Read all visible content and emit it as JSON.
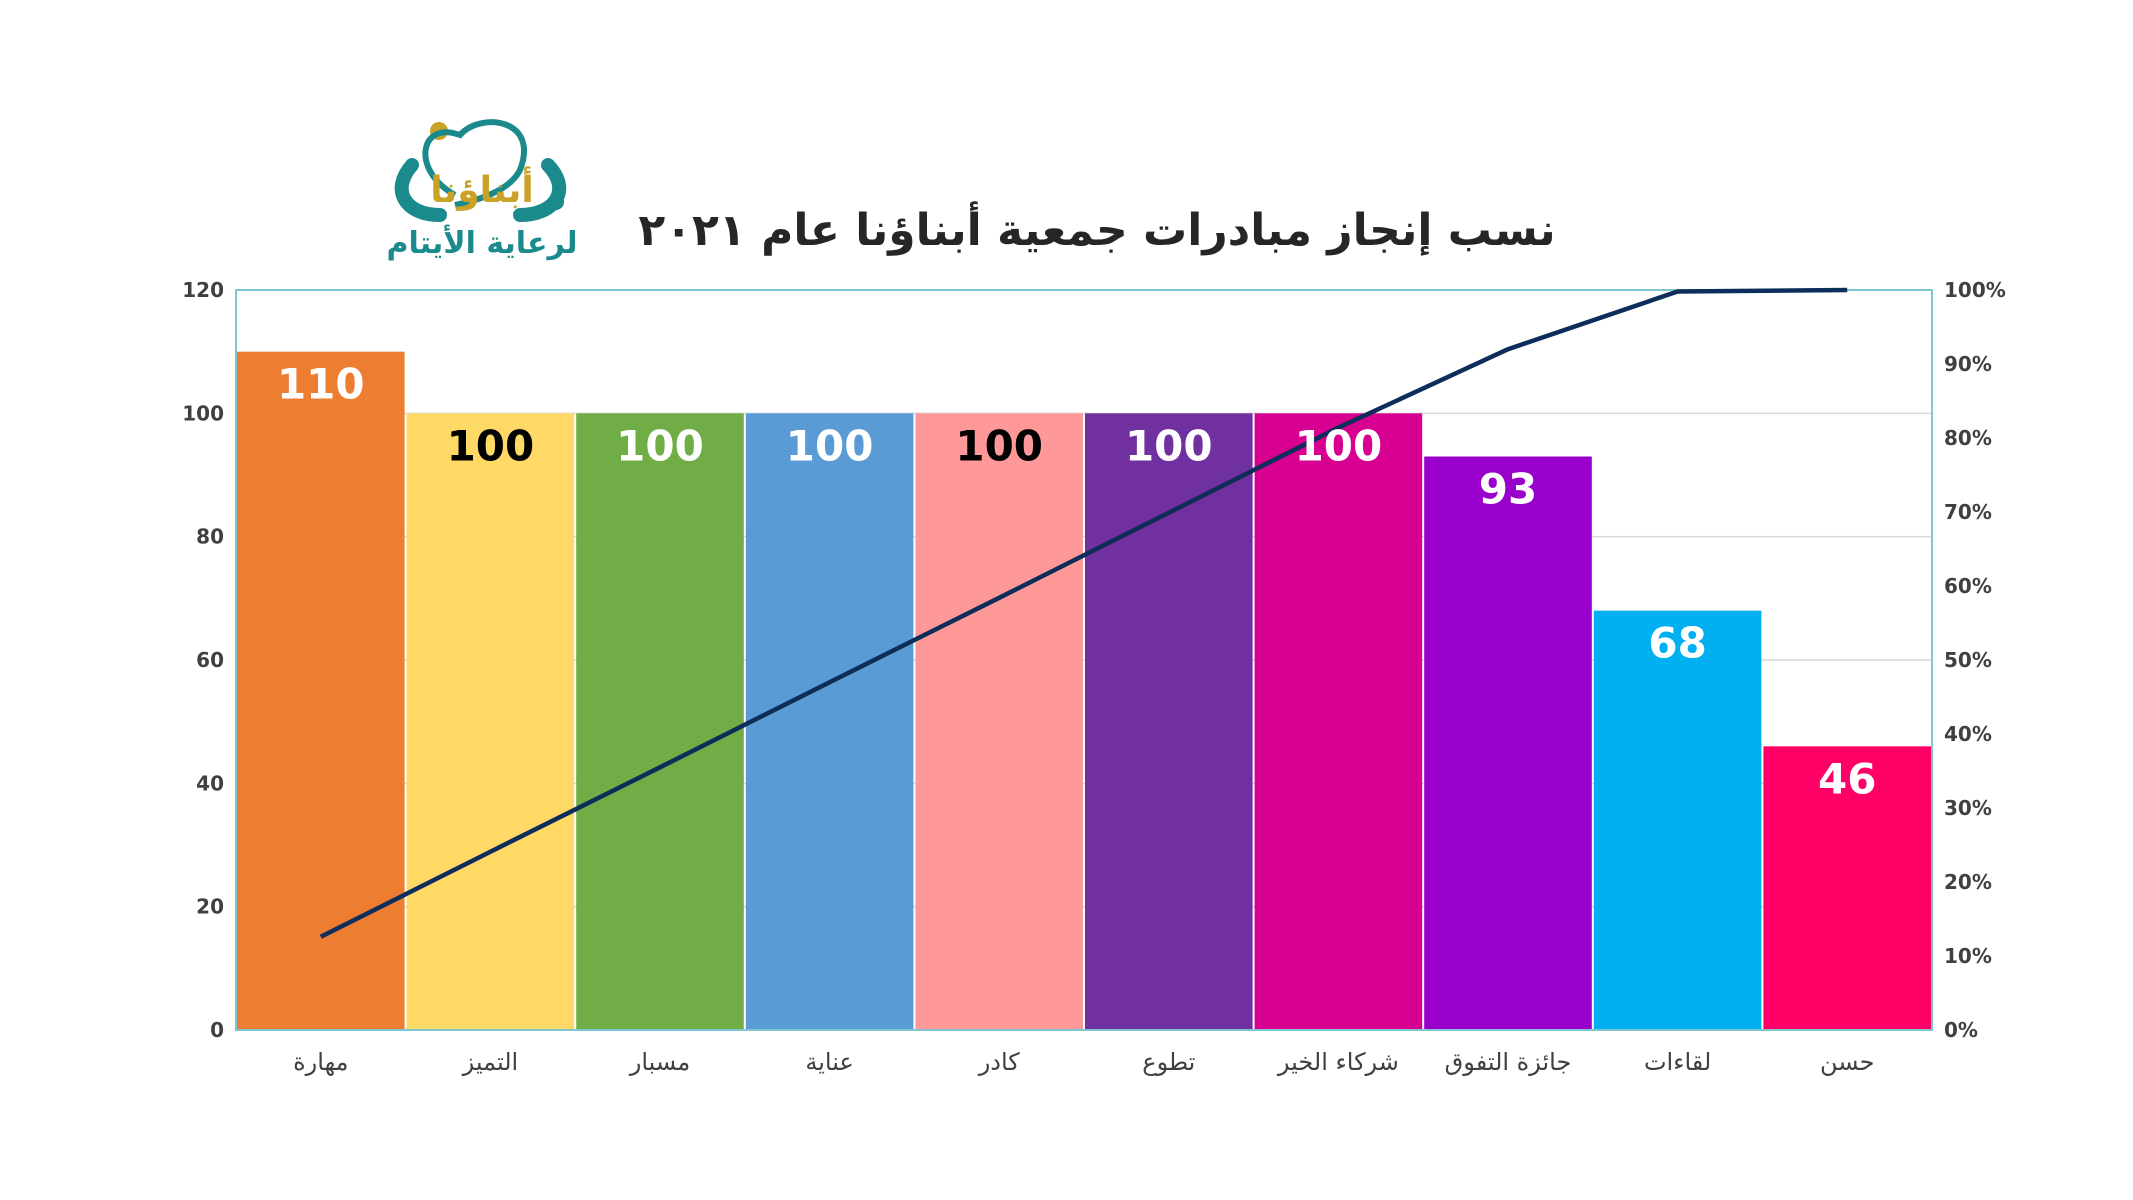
{
  "logo": {
    "name": "أبناؤنا",
    "tagline": "لرعاية الأيتام",
    "colors": {
      "teal": "#1a8a8c",
      "gold": "#c9a227"
    }
  },
  "chart_data": {
    "type": "bar",
    "title": "نسب إنجاز مبادرات جمعية أبناؤنا عام ٢٠٢١",
    "categories": [
      "مهارة",
      "التميز",
      "مسبار",
      "عناية",
      "كادر",
      "تطوع",
      "شركاء الخير",
      "جائزة التفوق",
      "لقاءات",
      "حسن"
    ],
    "values": [
      110,
      100,
      100,
      100,
      100,
      100,
      100,
      93,
      68,
      46
    ],
    "colors": [
      "#ED7D31",
      "#FFD966",
      "#70AD47",
      "#5B9BD5",
      "#FF9999",
      "#7030A0",
      "#D80090",
      "#9900CC",
      "#00B0F0",
      "#FF0066"
    ],
    "label_colors": [
      "#ffffff",
      "#000000",
      "#ffffff",
      "#ffffff",
      "#000000",
      "#ffffff",
      "#ffffff",
      "#ffffff",
      "#ffffff",
      "#ffffff"
    ],
    "ylim": [
      0,
      120
    ],
    "yticks": [
      0,
      20,
      40,
      60,
      80,
      100,
      120
    ],
    "y2lim": [
      0,
      100
    ],
    "y2ticks": [
      "0%",
      "10%",
      "20%",
      "30%",
      "40%",
      "50%",
      "60%",
      "70%",
      "80%",
      "90%",
      "100%"
    ],
    "line": {
      "name": "",
      "values": [
        12.6,
        24.1,
        35.5,
        47.0,
        58.4,
        69.9,
        81.4,
        92.0,
        99.8,
        100
      ],
      "color": "#0D2D5A"
    },
    "grid": true,
    "legend": "none"
  }
}
